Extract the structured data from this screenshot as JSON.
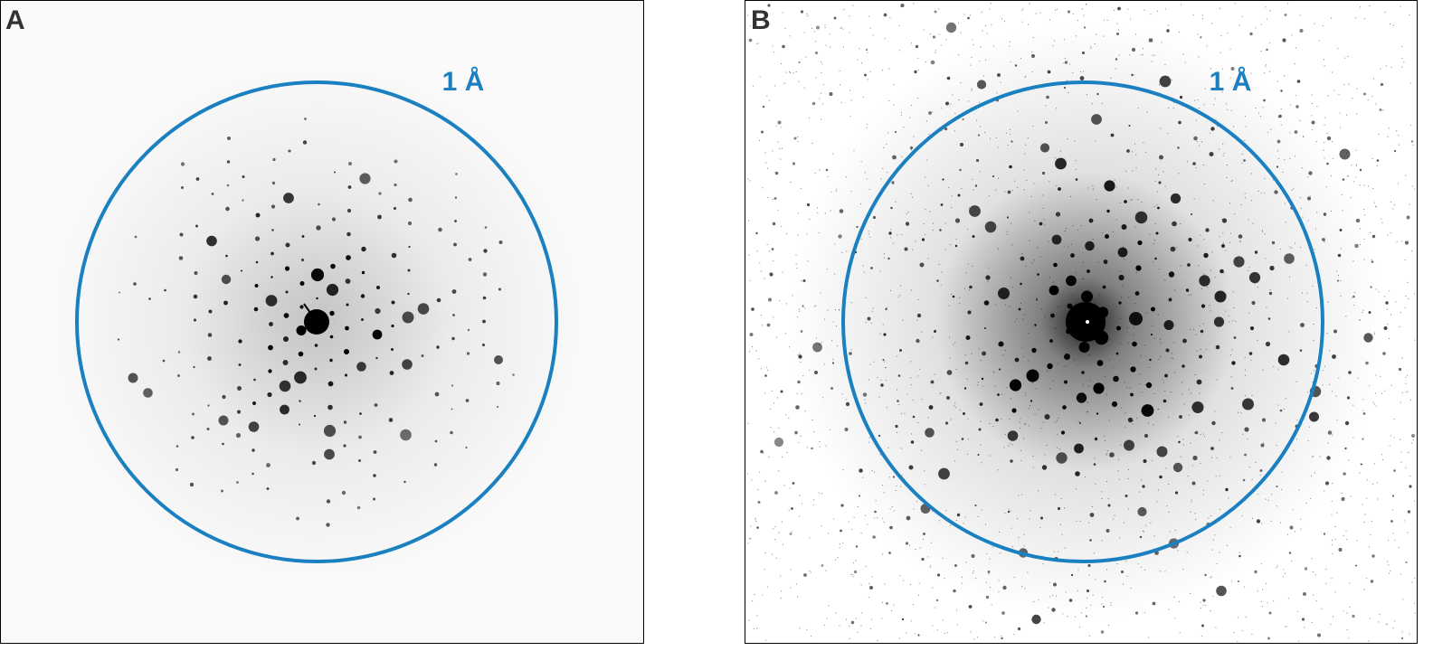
{
  "panels": [
    {
      "label": "A",
      "resolution_label": "1 Å"
    },
    {
      "label": "B",
      "resolution_label": "1 Å"
    }
  ]
}
